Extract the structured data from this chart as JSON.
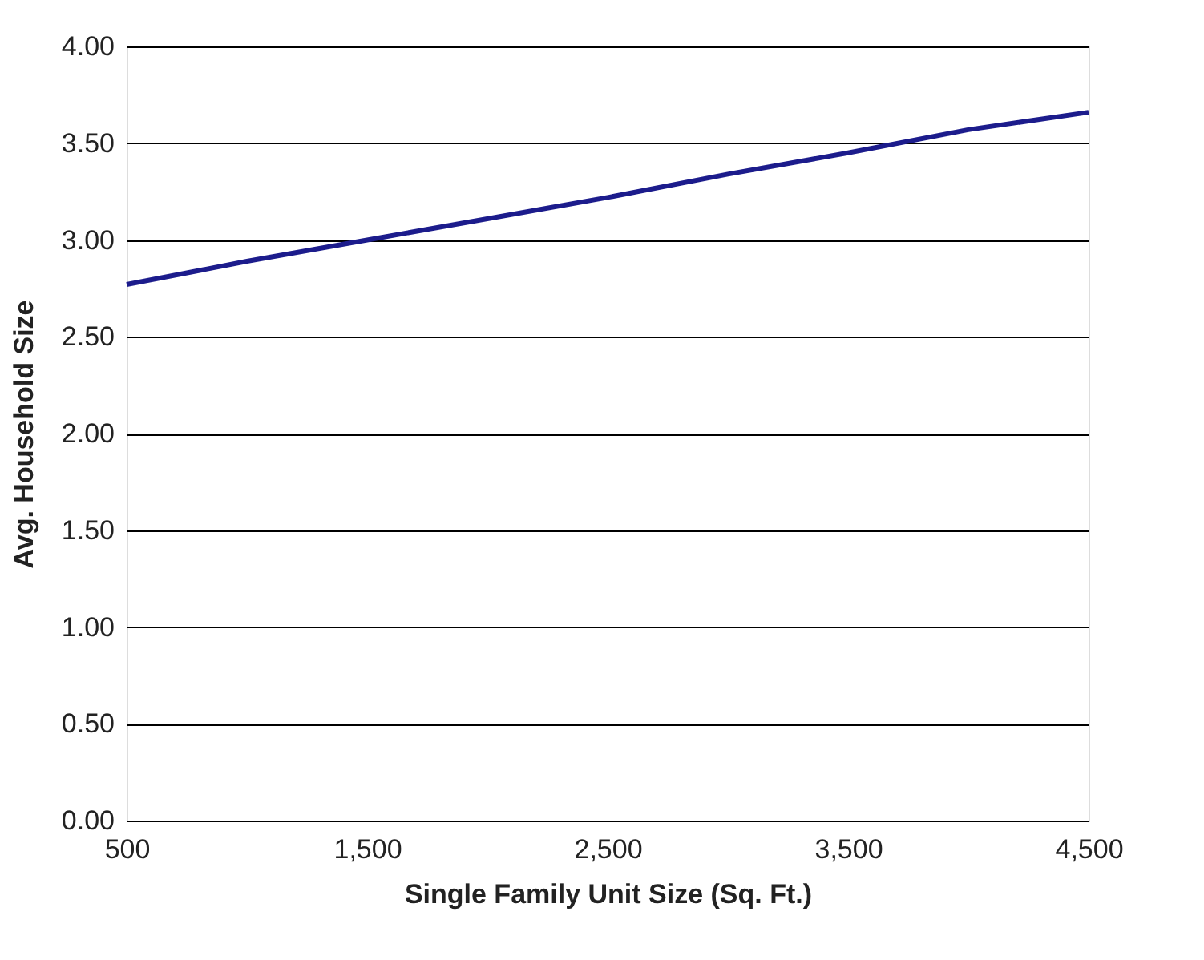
{
  "chart_data": {
    "type": "line",
    "xlabel": "Single Family Unit Size (Sq. Ft.)",
    "ylabel": "Avg. Household Size",
    "x": [
      500,
      1000,
      1500,
      2000,
      2500,
      3000,
      3500,
      4000,
      4500
    ],
    "series": [
      {
        "color": "#1c1c8c",
        "values": [
          2.77,
          2.89,
          3.0,
          3.11,
          3.22,
          3.34,
          3.45,
          3.57,
          3.66
        ]
      }
    ],
    "xlim": [
      500,
      4500
    ],
    "xticks": [
      {
        "value": 500,
        "label": "500"
      },
      {
        "value": 1500,
        "label": "1,500"
      },
      {
        "value": 2500,
        "label": "2,500"
      },
      {
        "value": 3500,
        "label": "3,500"
      },
      {
        "value": 4500,
        "label": "4,500"
      }
    ],
    "ylim": [
      0,
      4
    ],
    "yticks": [
      {
        "value": 0,
        "label": "0.00"
      },
      {
        "value": 0.5,
        "label": "0.50"
      },
      {
        "value": 1,
        "label": "1.00"
      },
      {
        "value": 1.5,
        "label": "1.50"
      },
      {
        "value": 2,
        "label": "2.00"
      },
      {
        "value": 2.5,
        "label": "2.50"
      },
      {
        "value": 3,
        "label": "3.00"
      },
      {
        "value": 3.5,
        "label": "3.50"
      },
      {
        "value": 4,
        "label": "4.00"
      }
    ],
    "grid": "y"
  }
}
